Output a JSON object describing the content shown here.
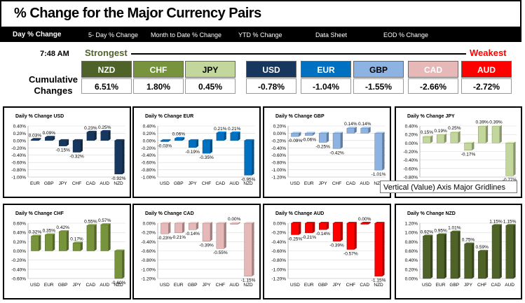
{
  "header": {
    "title": "% Change for the Major Currency Pairs"
  },
  "tabs": [
    {
      "label": "Day % Change",
      "active": true
    },
    {
      "label": "5- Day % Change"
    },
    {
      "label": "Month to Date % Change"
    },
    {
      "label": "YTD % Change"
    },
    {
      "label": "Data Sheet"
    },
    {
      "label": "EOD % Change"
    }
  ],
  "time": "7:48 AM",
  "strongest_label": "Strongest",
  "weakest_label": "Weakest",
  "cumulative_label": "Cumulative Changes",
  "currencies": [
    {
      "code": "NZD",
      "value": "6.51%",
      "color": "#4f6228",
      "text_color": "#ffffff"
    },
    {
      "code": "CHF",
      "value": "1.80%",
      "color": "#77933c",
      "text_color": "#ffffff"
    },
    {
      "code": "JPY",
      "value": "0.45%",
      "color": "#c3d69b",
      "text_color": "#000000"
    },
    {
      "code": "USD",
      "value": "-0.78%",
      "color": "#17375e",
      "text_color": "#ffffff"
    },
    {
      "code": "EUR",
      "value": "-1.04%",
      "color": "#0070c0",
      "text_color": "#ffffff"
    },
    {
      "code": "GBP",
      "value": "-1.55%",
      "color": "#8db3e2",
      "text_color": "#000000"
    },
    {
      "code": "CAD",
      "value": "-2.66%",
      "color": "#e6b9b8",
      "text_color": "#ffffff"
    },
    {
      "code": "AUD",
      "value": "-2.72%",
      "color": "#ff0000",
      "text_color": "#ffffff"
    }
  ],
  "tooltip": "Vertical (Value) Axis Major Gridlines",
  "chart_data": [
    {
      "type": "bar",
      "title": "Daily % Change USD",
      "color": "#17375e",
      "categories": [
        "EUR",
        "GBP",
        "JPY",
        "CHF",
        "CAD",
        "AUD",
        "NZD"
      ],
      "values": [
        0.03,
        0.09,
        -0.15,
        -0.32,
        0.23,
        0.25,
        -0.92
      ],
      "labels": [
        "0.03%",
        "0.09%",
        "-0.15%",
        "-0.32%",
        "0.23%",
        "0.25%",
        "-0.92%"
      ],
      "ticks": [
        "0.40%",
        "0.20%",
        "0.00%",
        "-0.20%",
        "-0.40%",
        "-0.60%",
        "-0.80%",
        "-1.00%"
      ],
      "ylim": [
        -1.0,
        0.4
      ]
    },
    {
      "type": "bar",
      "title": "Daily % Change EUR",
      "color": "#0070c0",
      "categories": [
        "USD",
        "GBP",
        "JPY",
        "CHF",
        "CAD",
        "AUD",
        "NZD"
      ],
      "values": [
        -0.03,
        0.06,
        -0.19,
        -0.35,
        0.21,
        0.21,
        -0.95
      ],
      "labels": [
        "-0.03%",
        "0.06%",
        "-0.19%",
        "-0.35%",
        "0.21%",
        "0.21%",
        "-0.95%"
      ],
      "ticks": [
        "0.40%",
        "0.20%",
        "0.00%",
        "-0.20%",
        "-0.40%",
        "-0.60%",
        "-0.80%",
        "-1.00%"
      ],
      "ylim": [
        -1.0,
        0.4
      ]
    },
    {
      "type": "bar",
      "title": "Daily % Change GBP",
      "color": "#8db3e2",
      "categories": [
        "USD",
        "EUR",
        "JPY",
        "CHF",
        "CAD",
        "AUD",
        "NZD"
      ],
      "values": [
        -0.09,
        -0.06,
        -0.25,
        -0.42,
        0.14,
        0.14,
        -1.01
      ],
      "labels": [
        "-0.09%",
        "-0.06%",
        "-0.25%",
        "-0.42%",
        "0.14%",
        "0.14%",
        "-1.01%"
      ],
      "ticks": [
        "0.20%",
        "0.00%",
        "-0.20%",
        "-0.40%",
        "-0.60%",
        "-0.80%",
        "-1.00%",
        "-1.20%"
      ],
      "ylim": [
        -1.2,
        0.2
      ]
    },
    {
      "type": "bar",
      "title": "Daily % Change JPY",
      "color": "#c3d69b",
      "categories": [
        "USD",
        "EUR",
        "GBP",
        "CHF",
        "CAD",
        "AUD",
        "NZD"
      ],
      "values": [
        0.15,
        0.19,
        0.25,
        -0.17,
        0.39,
        0.39,
        -0.77
      ],
      "labels": [
        "0.15%",
        "0.19%",
        "0.25%",
        "-0.17%",
        "0.39%",
        "0.39%",
        "-0.77%"
      ],
      "ticks": [
        "0.40%",
        "0.20%",
        "0.00%",
        "-0.20%",
        "-0.40%",
        "-0.60%",
        "-0.80%"
      ],
      "ylim": [
        -0.8,
        0.4
      ]
    },
    {
      "type": "bar",
      "title": "Daily % Change CHF",
      "color": "#77933c",
      "categories": [
        "USD",
        "EUR",
        "GBP",
        "JPY",
        "CAD",
        "AUD",
        "NZD"
      ],
      "values": [
        0.32,
        0.35,
        0.42,
        0.17,
        0.55,
        0.57,
        -0.6
      ],
      "labels": [
        "0.32%",
        "0.35%",
        "0.42%",
        "0.17%",
        "0.55%",
        "0.57%",
        "-0.60%"
      ],
      "ticks": [
        "0.60%",
        "0.40%",
        "0.20%",
        "0.00%",
        "-0.20%",
        "-0.40%",
        "-0.60%"
      ],
      "ylim": [
        -0.6,
        0.6
      ]
    },
    {
      "type": "bar",
      "title": "Daily % Change CAD",
      "color": "#e6b9b8",
      "categories": [
        "USD",
        "EUR",
        "GBP",
        "JPY",
        "CHF",
        "AUD",
        "NZD"
      ],
      "values": [
        -0.23,
        -0.21,
        -0.14,
        -0.39,
        -0.55,
        0.0,
        -1.15
      ],
      "labels": [
        "-0.23%",
        "-0.21%",
        "-0.14%",
        "-0.39%",
        "-0.55%",
        "0.00%",
        "-1.15%"
      ],
      "ticks": [
        "0.00%",
        "-0.20%",
        "-0.40%",
        "-0.60%",
        "-0.80%",
        "-1.00%",
        "-1.20%"
      ],
      "ylim": [
        -1.2,
        0.0
      ]
    },
    {
      "type": "bar",
      "title": "Daily % Change AUD",
      "color": "#ff0000",
      "categories": [
        "USD",
        "EUR",
        "GBP",
        "JPY",
        "CHF",
        "CAD",
        "NZD"
      ],
      "values": [
        -0.25,
        -0.21,
        -0.14,
        -0.39,
        -0.57,
        0.0,
        -1.15
      ],
      "labels": [
        "-0.25%",
        "-0.21%",
        "-0.14%",
        "-0.39%",
        "-0.57%",
        "0.00%",
        "-1.15%"
      ],
      "ticks": [
        "0.00%",
        "-0.20%",
        "-0.40%",
        "-0.60%",
        "-0.80%",
        "-1.00%",
        "-1.20%"
      ],
      "ylim": [
        -1.2,
        0.0
      ]
    },
    {
      "type": "bar",
      "title": "Daily % Change NZD",
      "color": "#4f6228",
      "categories": [
        "USD",
        "EUR",
        "GBP",
        "JPY",
        "CHF",
        "CAD",
        "AUD"
      ],
      "values": [
        0.92,
        0.95,
        1.01,
        0.75,
        0.59,
        1.15,
        1.15
      ],
      "labels": [
        "0.92%",
        "0.95%",
        "1.01%",
        "0.75%",
        "0.59%",
        "1.15%",
        "1.15%"
      ],
      "ticks": [
        "1.20%",
        "1.00%",
        "0.80%",
        "0.60%",
        "0.40%",
        "0.20%",
        "0.00%"
      ],
      "ylim": [
        0.0,
        1.2
      ]
    }
  ]
}
